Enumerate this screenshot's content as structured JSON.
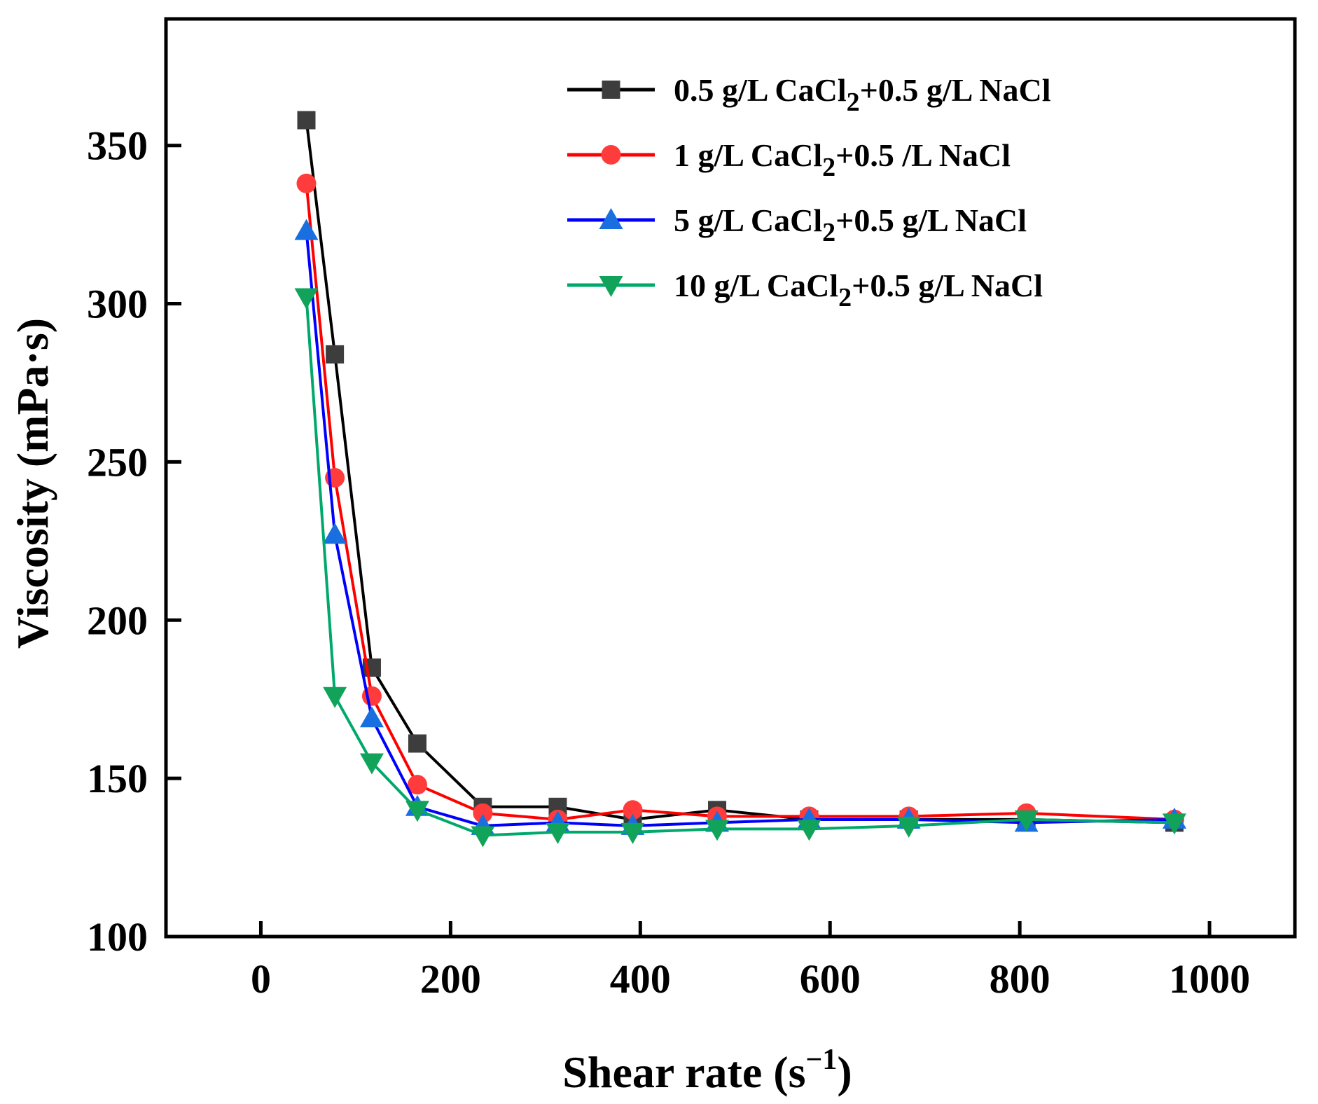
{
  "chart_data": {
    "type": "line",
    "title": "",
    "xlabel_main": "Shear rate (s",
    "xlabel_sup": "−1",
    "xlabel_close": ")",
    "ylabel": "Viscosity (mPa·s)",
    "xlim": [
      -100,
      1090
    ],
    "ylim": [
      100,
      390
    ],
    "xticks": [
      0,
      200,
      400,
      600,
      800,
      1000
    ],
    "yticks": [
      100,
      150,
      200,
      250,
      300,
      350
    ],
    "grid": false,
    "legend_position": "top-right",
    "series": [
      {
        "name_pre": "0.5 g/L CaCl",
        "name_sub": "2",
        "name_post": "+0.5 g/L NaCl",
        "color": "#000000",
        "marker_color": "#3d3d3d",
        "marker": "square",
        "x": [
          48,
          78,
          117,
          165,
          234,
          313,
          392,
          481,
          578,
          683,
          807,
          963
        ],
        "y": [
          358,
          284,
          185,
          161,
          141,
          141,
          137,
          140,
          137,
          137,
          137,
          136
        ]
      },
      {
        "name_pre": "1 g/L CaCl",
        "name_sub": "2",
        "name_post": "+0.5 /L NaCl",
        "color": "#ff0000",
        "marker_color": "#ff3b3b",
        "marker": "circle",
        "x": [
          48,
          78,
          117,
          165,
          234,
          313,
          392,
          481,
          578,
          683,
          807,
          963
        ],
        "y": [
          338,
          245,
          176,
          148,
          139,
          137,
          140,
          138,
          138,
          138,
          139,
          137
        ]
      },
      {
        "name_pre": "5 g/L CaCl",
        "name_sub": "2",
        "name_post": "+0.5 g/L NaCl",
        "color": "#0000ff",
        "marker_color": "#1a6fe0",
        "marker": "triangle-up",
        "x": [
          48,
          78,
          117,
          165,
          234,
          313,
          392,
          481,
          578,
          683,
          807,
          963
        ],
        "y": [
          323,
          227,
          169,
          141,
          135,
          136,
          135,
          136,
          137,
          137,
          136,
          137
        ]
      },
      {
        "name_pre": "10 g/L CaCl",
        "name_sub": "2",
        "name_post": "+0.5 g/L NaCl",
        "color": "#00a86b",
        "marker_color": "#12a35a",
        "marker": "triangle-down",
        "x": [
          48,
          78,
          117,
          165,
          234,
          313,
          392,
          481,
          578,
          683,
          807,
          963
        ],
        "y": [
          302,
          176,
          155,
          140,
          132,
          133,
          133,
          134,
          134,
          135,
          137,
          136
        ]
      }
    ]
  }
}
